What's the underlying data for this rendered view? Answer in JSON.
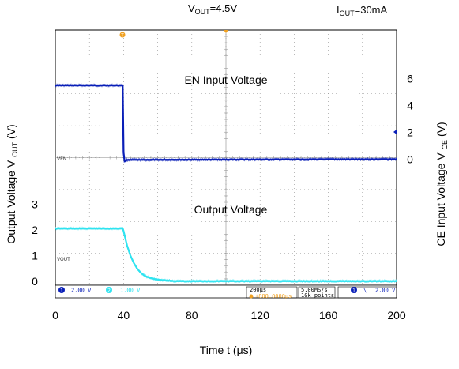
{
  "chart_data": {
    "type": "line",
    "header": {
      "vout": {
        "prefix": "V",
        "sub": "OUT",
        "suffix": "=4.5V"
      },
      "iout": {
        "prefix": "I",
        "sub": "OUT",
        "suffix": "=30mA"
      }
    },
    "annotations": {
      "en_input": "EN Input Voltage",
      "output_voltage": "Output Voltage",
      "ven_marker": "VEN",
      "vout_marker": "VOUT"
    },
    "x_axis": {
      "label": "Time t (μs)",
      "ticks": [
        0,
        40,
        80,
        120,
        160,
        200
      ],
      "range": [
        0,
        200
      ]
    },
    "y_left": {
      "label": {
        "prefix": "Output Voltage V ",
        "sub": "OUT",
        "suffix": " (V)"
      },
      "ticks": [
        0,
        1,
        2,
        3
      ],
      "range": [
        -0.5,
        3.5
      ]
    },
    "y_right": {
      "label": {
        "prefix": "CE Input Voltage V ",
        "sub": "CE",
        "suffix": " (V)"
      },
      "ticks": [
        0,
        2,
        4,
        6
      ],
      "range": [
        -0.5,
        7.5
      ]
    },
    "scope_status": {
      "ch1_num": "1",
      "ch1_scale": "2.00 V",
      "ch2_num": "2",
      "ch2_scale": "1.00 V",
      "timebase": "200μs",
      "trigger_pos": "+800.0000μs",
      "trigger_marker": "T",
      "sample_rate": "5.00MS/s",
      "record_len": "10k points",
      "trig_ch": "1",
      "trig_slope": "\\",
      "trig_level": "2.00 V"
    },
    "series": [
      {
        "name": "EN Input Voltage",
        "axis": "right",
        "color": "#0a1fb8",
        "x": [
          0,
          39.5,
          40,
          40.6,
          42,
          200
        ],
        "y": [
          5.5,
          5.5,
          0.5,
          -0.15,
          -0.05,
          0
        ]
      },
      {
        "name": "Output Voltage",
        "axis": "left",
        "color": "#2fe3f0",
        "x": [
          0,
          39.5,
          40,
          42,
          44,
          46,
          48,
          50,
          52,
          55,
          58,
          62,
          66,
          70,
          80,
          200
        ],
        "y": [
          2.05,
          2.05,
          1.95,
          1.4,
          1.0,
          0.7,
          0.48,
          0.33,
          0.22,
          0.13,
          0.08,
          0.04,
          0.02,
          0.0,
          0.0,
          0.0
        ]
      }
    ]
  },
  "colors": {
    "ch1": "#0a1fb8",
    "ch2": "#2fe3f0",
    "trigger": "#f0a020",
    "grid": "#8a8a8a"
  }
}
